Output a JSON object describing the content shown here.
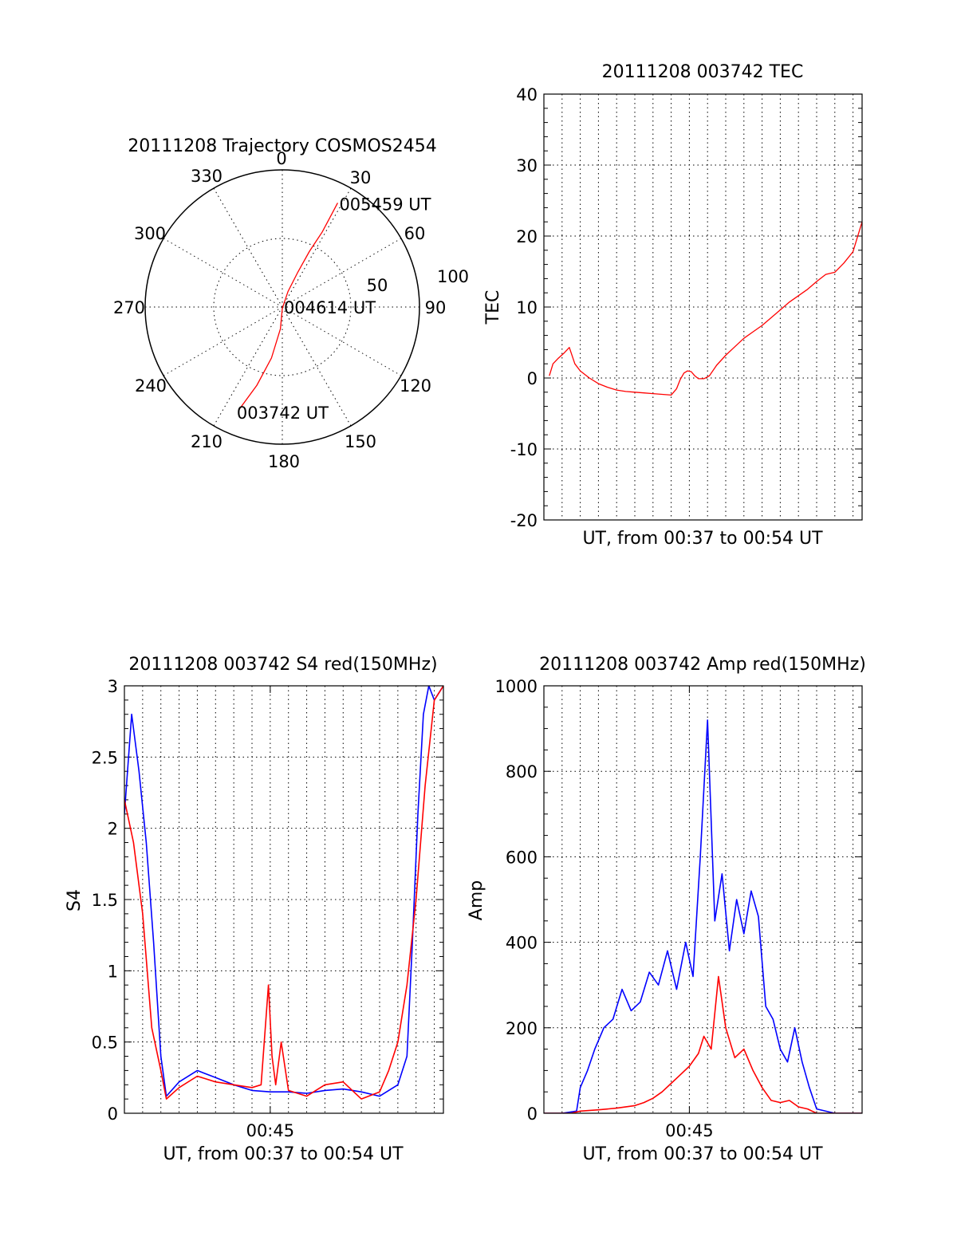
{
  "colors": {
    "red": "#ff0000",
    "blue": "#0000ff",
    "axis": "#000000"
  },
  "chart_data": [
    {
      "type": "polar",
      "title": "20111208 Trajectory COSMOS2454",
      "angle_labels": [
        "0",
        "30",
        "60",
        "90",
        "120",
        "150",
        "180",
        "210",
        "240",
        "270",
        "300",
        "330"
      ],
      "radius_labels": [
        "50",
        "100"
      ],
      "rlim": [
        0,
        100
      ],
      "grid": true,
      "trajectory": {
        "color": "red",
        "points": [
          [
            203,
            82
          ],
          [
            198,
            60
          ],
          [
            192,
            38
          ],
          [
            185,
            16
          ],
          [
            180,
            1
          ],
          [
            20,
            12
          ],
          [
            24,
            28
          ],
          [
            26,
            45
          ],
          [
            28,
            62
          ],
          [
            28,
            77
          ],
          [
            28,
            86
          ]
        ]
      },
      "annotations": [
        {
          "text": "005459 UT",
          "at": [
            28,
            86
          ]
        },
        {
          "text": "004614 UT",
          "at": [
            90,
            0
          ]
        },
        {
          "text": "003742 UT",
          "at": [
            203,
            82
          ]
        }
      ]
    },
    {
      "type": "line",
      "title": "20111208 003742 TEC",
      "xlabel": "UT, from 00:37 to 00:54 UT",
      "ylabel": "TEC",
      "xlim": [
        0,
        17.5
      ],
      "ylim": [
        -20,
        40
      ],
      "yticks": [
        "-20",
        "-10",
        "0",
        "10",
        "20",
        "30",
        "40"
      ],
      "grid": true,
      "series": [
        {
          "color": "red",
          "x": [
            0.3,
            0.5,
            0.8,
            1.1,
            1.4,
            1.7,
            2.0,
            2.5,
            3.0,
            3.5,
            4.0,
            4.5,
            5.0,
            5.5,
            6.0,
            6.5,
            7.0,
            7.3,
            7.5,
            7.7,
            7.9,
            8.1,
            8.3,
            8.5,
            8.8,
            9.1,
            9.5,
            10.0,
            10.5,
            11.0,
            11.5,
            12.0,
            12.5,
            13.0,
            13.5,
            14.0,
            14.5,
            15.0,
            15.5,
            16.0,
            16.5,
            17.0,
            17.5
          ],
          "y": [
            0.3,
            2.0,
            2.8,
            3.5,
            4.3,
            2.0,
            1.0,
            0.0,
            -0.8,
            -1.3,
            -1.7,
            -1.9,
            -2.0,
            -2.1,
            -2.2,
            -2.3,
            -2.4,
            -1.5,
            -0.2,
            0.7,
            1.0,
            0.9,
            0.3,
            -0.1,
            -0.1,
            0.3,
            1.8,
            3.2,
            4.4,
            5.6,
            6.5,
            7.4,
            8.5,
            9.6,
            10.7,
            11.6,
            12.5,
            13.6,
            14.6,
            14.9,
            16.2,
            17.8,
            22.0
          ]
        }
      ]
    },
    {
      "type": "line",
      "title": "20111208 003742 S4 red(150MHz)",
      "xlabel": "UT, from 00:37 to 00:54 UT",
      "ylabel": "S4",
      "xlim": [
        0,
        17.5
      ],
      "ylim": [
        0,
        3
      ],
      "xticks": [
        {
          "value": 8,
          "label": "00:45"
        }
      ],
      "yticks": [
        "0",
        "0.5",
        "1",
        "1.5",
        "2",
        "2.5",
        "3"
      ],
      "grid": true,
      "series": [
        {
          "color": "blue",
          "x": [
            0.0,
            0.4,
            0.8,
            1.2,
            1.6,
            2.0,
            2.3,
            3.0,
            4.0,
            5.0,
            6.0,
            7.0,
            8.0,
            9.0,
            10.0,
            11.0,
            12.0,
            13.0,
            14.0,
            15.0,
            15.5,
            15.8,
            16.1,
            16.4,
            16.7,
            17.0,
            17.5
          ],
          "y": [
            2.1,
            2.8,
            2.4,
            1.9,
            1.2,
            0.4,
            0.12,
            0.22,
            0.3,
            0.25,
            0.2,
            0.16,
            0.15,
            0.15,
            0.14,
            0.16,
            0.17,
            0.15,
            0.12,
            0.2,
            0.4,
            1.2,
            2.1,
            2.8,
            3.0,
            2.9,
            3.0
          ]
        },
        {
          "color": "red",
          "x": [
            0.0,
            0.5,
            1.0,
            1.5,
            2.0,
            2.3,
            3.0,
            4.0,
            5.0,
            6.0,
            7.0,
            7.5,
            7.9,
            8.1,
            8.3,
            8.6,
            9.0,
            10.0,
            11.0,
            12.0,
            13.0,
            14.0,
            14.5,
            15.0,
            15.5,
            16.0,
            16.5,
            17.0,
            17.5
          ],
          "y": [
            2.2,
            1.9,
            1.4,
            0.6,
            0.3,
            0.1,
            0.18,
            0.26,
            0.22,
            0.2,
            0.18,
            0.2,
            0.9,
            0.4,
            0.2,
            0.5,
            0.16,
            0.12,
            0.2,
            0.22,
            0.1,
            0.15,
            0.3,
            0.5,
            0.9,
            1.5,
            2.3,
            2.9,
            3.0
          ]
        }
      ]
    },
    {
      "type": "line",
      "title": "20111208 003742 Amp red(150MHz)",
      "xlabel": "UT, from 00:37 to 00:54 UT",
      "ylabel": "Amp",
      "xlim": [
        0,
        17.5
      ],
      "ylim": [
        0,
        1000
      ],
      "xticks": [
        {
          "value": 8,
          "label": "00:45"
        }
      ],
      "yticks": [
        "0",
        "200",
        "400",
        "600",
        "800",
        "1000"
      ],
      "grid": true,
      "series": [
        {
          "color": "blue",
          "x": [
            0.0,
            1.0,
            1.8,
            2.0,
            2.4,
            2.8,
            3.3,
            3.8,
            4.3,
            4.8,
            5.3,
            5.8,
            6.3,
            6.8,
            7.3,
            7.8,
            8.2,
            8.6,
            9.0,
            9.4,
            9.8,
            10.2,
            10.6,
            11.0,
            11.4,
            11.8,
            12.2,
            12.6,
            13.0,
            13.4,
            13.8,
            14.2,
            14.6,
            15.0,
            16.0,
            17.5
          ],
          "y": [
            0,
            0,
            5,
            60,
            100,
            150,
            200,
            220,
            290,
            240,
            260,
            330,
            300,
            380,
            290,
            400,
            320,
            600,
            920,
            450,
            560,
            380,
            500,
            420,
            520,
            460,
            250,
            220,
            150,
            120,
            200,
            120,
            60,
            10,
            0,
            0
          ]
        },
        {
          "color": "red",
          "x": [
            0.0,
            1.5,
            2.0,
            3.0,
            4.0,
            5.0,
            5.5,
            6.0,
            6.5,
            7.0,
            7.5,
            8.0,
            8.5,
            8.8,
            9.2,
            9.6,
            10.0,
            10.5,
            11.0,
            11.5,
            12.0,
            12.5,
            13.0,
            13.5,
            14.0,
            14.5,
            15.0,
            16.0,
            17.5
          ],
          "y": [
            0,
            0,
            5,
            8,
            12,
            18,
            25,
            35,
            50,
            70,
            90,
            110,
            140,
            180,
            150,
            320,
            200,
            130,
            150,
            100,
            60,
            30,
            25,
            30,
            15,
            10,
            0,
            0,
            0
          ]
        }
      ]
    }
  ]
}
